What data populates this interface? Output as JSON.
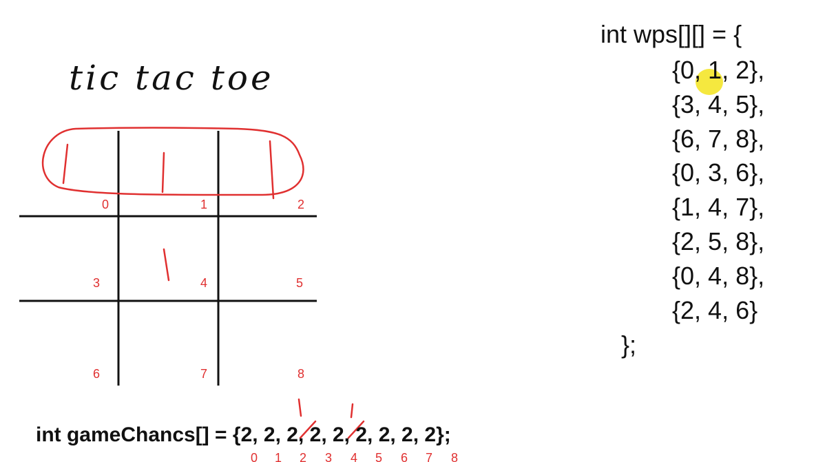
{
  "title": "tic tac toe",
  "cell_labels": [
    "0",
    "1",
    "2",
    "3",
    "4",
    "5",
    "6",
    "7",
    "8"
  ],
  "wps": {
    "header": "int wps[][] = {",
    "rows": [
      "{0, 1, 2},",
      "{3, 4, 5},",
      "{6, 7, 8},",
      "{0, 3, 6},",
      "{1, 4, 7},",
      "{2, 5, 8},",
      "{0, 4, 8},",
      "{2, 4, 6}"
    ],
    "footer": "};"
  },
  "game_chances": {
    "code": "int gameChancs[] = {2, 2, 2, 2, 2, 2, 2, 2, 2};",
    "indices": [
      "0",
      "1",
      "2",
      "3",
      "4",
      "5",
      "6",
      "7",
      "8"
    ]
  },
  "colors": {
    "ink": "#111111",
    "annotation": "#e03030",
    "cursor": "#f4e52a"
  }
}
